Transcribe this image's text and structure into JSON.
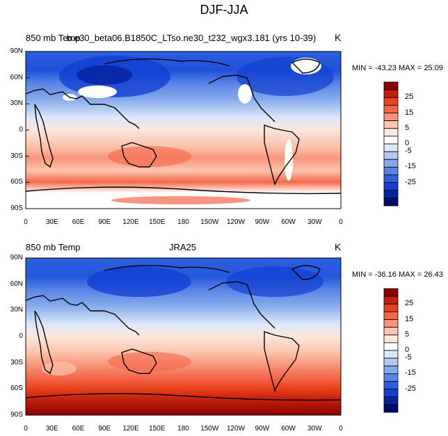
{
  "figure": {
    "title": "DJF-JJA"
  },
  "panels": [
    {
      "left_title": "850  mb Temp",
      "center_title": "b.e30_beta06.B1850C_LTso.ne30_t232_wgx3.181 (yrs 10-39)",
      "units": "K",
      "stats": "MIN = -43.23  MAX =  25.09"
    },
    {
      "left_title": "850 mb Temp",
      "center_title": "JRA25",
      "units": "K",
      "stats": "MIN = -36.16  MAX =  26.43"
    }
  ],
  "axes": {
    "lat_labels": [
      "90N",
      "60N",
      "30N",
      "0",
      "30S",
      "60S",
      "90S"
    ],
    "lon_labels": [
      "0",
      "30E",
      "60E",
      "90E",
      "120E",
      "150E",
      "180",
      "150W",
      "120W",
      "90W",
      "60W",
      "30W",
      "0"
    ]
  },
  "colorbar": {
    "labels": [
      "25",
      "15",
      "5",
      "-5",
      "-15",
      "-25"
    ],
    "zero_label": "0",
    "colors": [
      "#8b0000",
      "#c3200b",
      "#e8421e",
      "#f4684a",
      "#f8967a",
      "#fbc4ad",
      "#fde6dc",
      "#ffffff",
      "#dce8fa",
      "#b2cbf3",
      "#84a8ec",
      "#5783e6",
      "#2d5fe0",
      "#1140d2",
      "#04239e",
      "#000c6e"
    ]
  },
  "chart_data": {
    "type": "heatmap",
    "description_note": "",
    "x": "longitude",
    "y": "latitude",
    "xlim": [
      0,
      360
    ],
    "ylim": [
      -90,
      90
    ]
  }
}
